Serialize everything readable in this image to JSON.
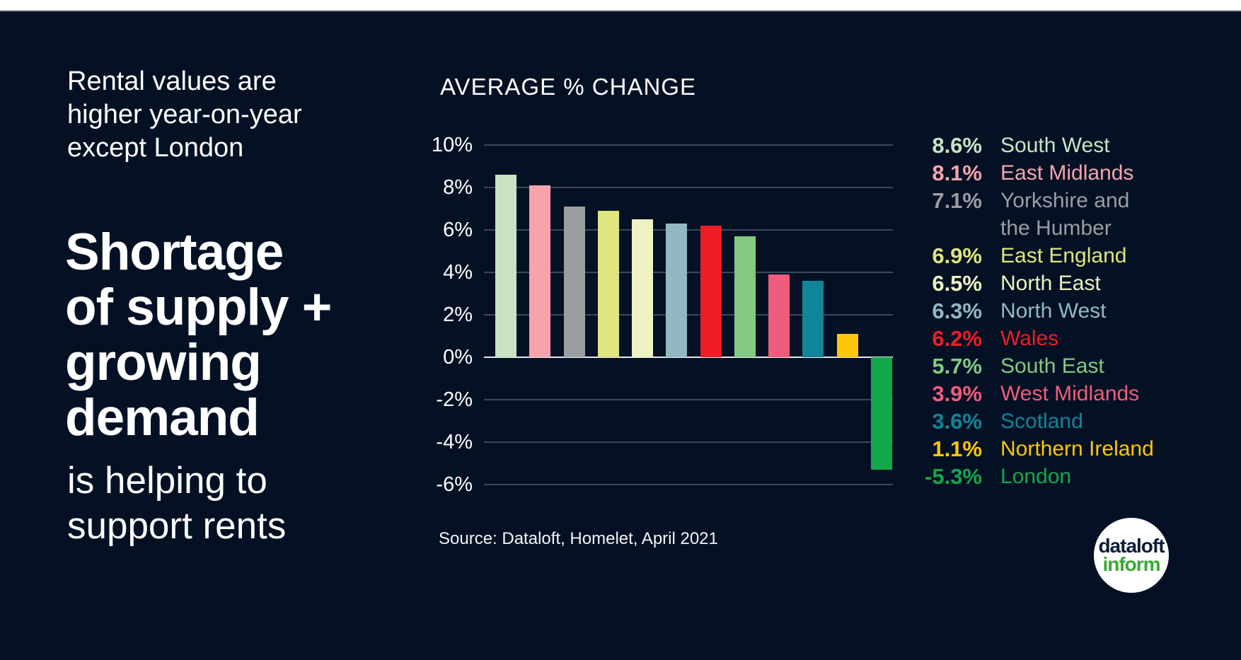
{
  "colors": {
    "background": "#041124",
    "top_strip": "#ffffff",
    "gridline": "#3a4760",
    "zero_line": "#e6e9ef",
    "text": "#ffffff"
  },
  "left_panel": {
    "intro_bold_lines": "Rental values are\nhigher year-on-year",
    "intro_light_line": "except London",
    "headline": "Shortage\nof supply +\ngrowing\ndemand",
    "tagline": "is helping to\nsupport rents"
  },
  "chart": {
    "title": "AVERAGE % CHANGE",
    "source": "Source: Dataloft, Homelet, April 2021"
  },
  "chart_data": {
    "type": "bar",
    "title": "AVERAGE % CHANGE",
    "categories": [
      "South West",
      "East Midlands",
      "Yorkshire and the Humber",
      "East England",
      "North East",
      "North West",
      "Wales",
      "South East",
      "West Midlands",
      "Scotland",
      "Northern Ireland",
      "London"
    ],
    "values": [
      8.6,
      8.1,
      7.1,
      6.9,
      6.5,
      6.3,
      6.2,
      5.7,
      3.9,
      3.6,
      1.1,
      -5.3
    ],
    "bar_colors": [
      "#c9e2c4",
      "#f6a3ac",
      "#9c9da1",
      "#dfe57f",
      "#eef2c3",
      "#92b9c3",
      "#ee1c25",
      "#83c983",
      "#f05c7c",
      "#108599",
      "#ffc60a",
      "#14a84c"
    ],
    "xlabel": "",
    "ylabel": "AVERAGE % CHANGE",
    "ylim": [
      -6,
      10
    ],
    "ytick_values": [
      10,
      8,
      6,
      4,
      2,
      0,
      -2,
      -4,
      -6
    ],
    "ytick_labels": [
      "10%",
      "8%",
      "6%",
      "4%",
      "2%",
      "0%",
      "-2%",
      "-4%",
      "-6%"
    ],
    "grid": true,
    "legend_position": "right"
  },
  "legend": {
    "items": [
      {
        "value": "8.6%",
        "label": "South West",
        "color": "#c9e2c4"
      },
      {
        "value": "8.1%",
        "label": "East Midlands",
        "color": "#f6a3ac"
      },
      {
        "value": "7.1%",
        "label": "Yorkshire and\nthe Humber",
        "color": "#9c9da1"
      },
      {
        "value": "6.9%",
        "label": "East England",
        "color": "#dfe57f"
      },
      {
        "value": "6.5%",
        "label": "North East",
        "color": "#eef2c3"
      },
      {
        "value": "6.3%",
        "label": "North West",
        "color": "#92b9c3"
      },
      {
        "value": "6.2%",
        "label": "Wales",
        "color": "#ee1c25"
      },
      {
        "value": "5.7%",
        "label": "South East",
        "color": "#83c983"
      },
      {
        "value": "3.9%",
        "label": "West Midlands",
        "color": "#f05c7c"
      },
      {
        "value": "3.6%",
        "label": "Scotland",
        "color": "#108599"
      },
      {
        "value": "1.1%",
        "label": "Northern Ireland",
        "color": "#ffc60a"
      },
      {
        "value": "-5.3%",
        "label": "London",
        "color": "#14a84c"
      }
    ]
  },
  "logo": {
    "line1": "dataloft",
    "line2": "inform",
    "line1_color": "#0d1c38",
    "line2_color": "#3aaa35",
    "circle_color": "#ffffff"
  }
}
